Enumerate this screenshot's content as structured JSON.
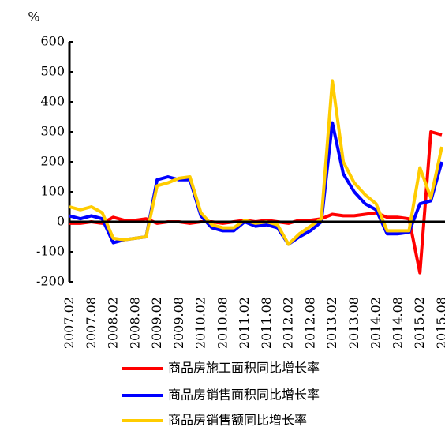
{
  "chart_data": {
    "type": "line",
    "y_label": "%",
    "categories": [
      "2007.02",
      null,
      "2007.08",
      null,
      "2008.02",
      null,
      "2008.08",
      null,
      "2009.02",
      null,
      "2009.08",
      null,
      "2010.02",
      null,
      "2010.08",
      null,
      "2011.02",
      null,
      "2011.08",
      null,
      "2012.02",
      null,
      "2012.08",
      null,
      "2013.02",
      null,
      "2013.08",
      null,
      "2014.02",
      null,
      "2014.08",
      null,
      "2015.02",
      null,
      "2015.08"
    ],
    "series": [
      {
        "name": "商品房施工面积同比增长率",
        "color": "#ff0000",
        "values": [
          -5,
          -5,
          0,
          -5,
          15,
          5,
          5,
          10,
          -5,
          0,
          0,
          -5,
          0,
          0,
          -5,
          0,
          5,
          0,
          5,
          0,
          -5,
          5,
          5,
          10,
          25,
          20,
          20,
          25,
          30,
          15,
          15,
          10,
          -170,
          300,
          290
        ]
      },
      {
        "name": "商品房销售面积同比增长率",
        "color": "#0000ff",
        "values": [
          20,
          10,
          20,
          10,
          -70,
          -60,
          -55,
          -50,
          140,
          150,
          140,
          140,
          20,
          -20,
          -30,
          -30,
          0,
          -15,
          -10,
          -20,
          -75,
          -50,
          -30,
          0,
          330,
          160,
          100,
          60,
          40,
          -40,
          -40,
          -35,
          60,
          70,
          200
        ]
      },
      {
        "name": "商品房销售额同比增长率",
        "color": "#ffcc00",
        "values": [
          50,
          40,
          50,
          30,
          -55,
          -60,
          -55,
          -50,
          120,
          130,
          145,
          150,
          30,
          -10,
          -20,
          -20,
          5,
          -5,
          0,
          -10,
          -75,
          -40,
          -15,
          10,
          470,
          200,
          130,
          90,
          60,
          -30,
          -30,
          -30,
          180,
          80,
          250
        ]
      }
    ],
    "ylim": [
      -200,
      600
    ],
    "yticks": [
      -200,
      -100,
      0,
      100,
      200,
      300,
      400,
      500,
      600
    ],
    "grid": false
  }
}
